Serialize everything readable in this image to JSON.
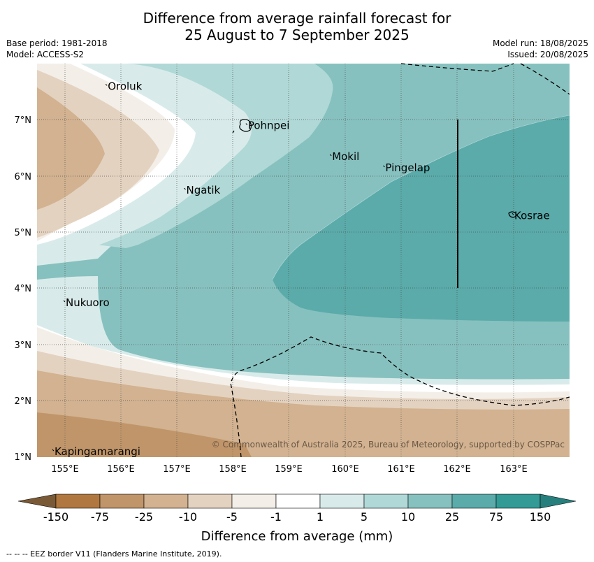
{
  "title": {
    "line1": "Difference from average rainfall forecast for",
    "line2": "25 August to 7 September 2025"
  },
  "meta": {
    "base_period": "Base period: 1981-2018",
    "model": "Model: ACCESS-S2",
    "model_run": "Model run: 18/08/2025",
    "issued": "Issued: 20/08/2025"
  },
  "map": {
    "lon_ticks": [
      "155°E",
      "156°E",
      "157°E",
      "158°E",
      "159°E",
      "160°E",
      "161°E",
      "162°E",
      "163°E"
    ],
    "lat_ticks": [
      "7°N",
      "6°N",
      "5°N",
      "4°N",
      "3°N",
      "2°N",
      "1°N"
    ],
    "places": [
      {
        "name": "Oroluk",
        "lon": 155.75,
        "lat": 7.6
      },
      {
        "name": "Pohnpei",
        "lon": 158.25,
        "lat": 6.9
      },
      {
        "name": "Mokil",
        "lon": 159.75,
        "lat": 6.35
      },
      {
        "name": "Pingelap",
        "lon": 160.7,
        "lat": 6.15
      },
      {
        "name": "Ngatik",
        "lon": 157.15,
        "lat": 5.75
      },
      {
        "name": "Kosrae",
        "lon": 163.0,
        "lat": 5.3
      },
      {
        "name": "Nukuoro",
        "lon": 155.0,
        "lat": 3.75
      },
      {
        "name": "Kapingamarangi",
        "lon": 154.8,
        "lat": 1.1
      }
    ],
    "copyright": "© Commonwealth of Australia 2025, Bureau of Meteorology, supported by COSPPac"
  },
  "colorbar": {
    "labels": [
      "-150",
      "-75",
      "-25",
      "-10",
      "-5",
      "-1",
      "1",
      "5",
      "10",
      "25",
      "75",
      "150"
    ],
    "colors": [
      "#7a5a36",
      "#b07840",
      "#c0956a",
      "#d2b290",
      "#e4d2c0",
      "#f3efe8",
      "#ffffff",
      "#d8ebea",
      "#b0d8d6",
      "#86c1bf",
      "#5aabaa",
      "#339a96",
      "#267f7c"
    ],
    "title": "Difference from average (mm)"
  },
  "footnote": "-- -- -- EEZ border V11 (Flanders Marine Institute, 2019)."
}
